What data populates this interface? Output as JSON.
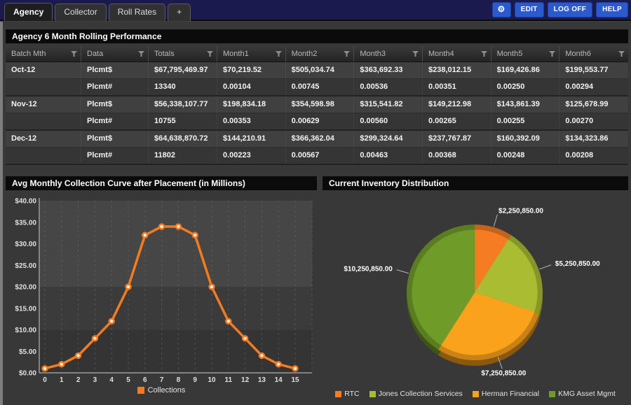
{
  "header": {
    "bar_color": "#1a1a4e",
    "button_color": "#2b5ace",
    "tabs": [
      {
        "label": "Agency",
        "active": true
      },
      {
        "label": "Collector",
        "active": false
      },
      {
        "label": "Roll Rates",
        "active": false
      },
      {
        "label": "+",
        "active": false
      }
    ],
    "buttons": [
      {
        "name": "settings",
        "label": "⚙"
      },
      {
        "name": "edit",
        "label": "EDIT"
      },
      {
        "name": "logoff",
        "label": "LOG OFF"
      },
      {
        "name": "help",
        "label": "HELP"
      }
    ]
  },
  "performance_table": {
    "title": "Agency 6 Month Rolling Performance",
    "columns": [
      "Batch Mth",
      "Data",
      "Totals",
      "Month1",
      "Month2",
      "Month3",
      "Month4",
      "Month5",
      "Month6"
    ],
    "rows": [
      [
        "Oct-12",
        "Plcmt$",
        "$67,795,469.97",
        "$70,219.52",
        "$505,034.74",
        "$363,692.33",
        "$238,012.15",
        "$169,426.86",
        "$199,553.77"
      ],
      [
        "",
        "Plcmt#",
        "13340",
        "0.00104",
        "0.00745",
        "0.00536",
        "0.00351",
        "0.00250",
        "0.00294"
      ],
      [
        "Nov-12",
        "Plcmt$",
        "$56,338,107.77",
        "$198,834.18",
        "$354,598.98",
        "$315,541.82",
        "$149,212.98",
        "$143,861.39",
        "$125,678.99"
      ],
      [
        "",
        "Plcmt#",
        "10755",
        "0.00353",
        "0.00629",
        "0.00560",
        "0.00265",
        "0.00255",
        "0.00270"
      ],
      [
        "Dec-12",
        "Plcmt$",
        "$64,638,870.72",
        "$144,210.91",
        "$366,362.04",
        "$299,324.64",
        "$237,767.87",
        "$160,392.09",
        "$134,323.86"
      ],
      [
        "",
        "Plcmt#",
        "11802",
        "0.00223",
        "0.00567",
        "0.00463",
        "0.00368",
        "0.00248",
        "0.00208"
      ]
    ]
  },
  "chart_data": [
    {
      "type": "line",
      "title": "Avg Monthly Collection Curve after Placement (in Millions)",
      "x": [
        0,
        1,
        2,
        3,
        4,
        5,
        6,
        7,
        8,
        9,
        10,
        11,
        12,
        13,
        14,
        15
      ],
      "series": [
        {
          "name": "Collections",
          "color": "#f57b20",
          "values": [
            1,
            2,
            4,
            8,
            12,
            20,
            32,
            34,
            34,
            32,
            20,
            12,
            8,
            4,
            2,
            1
          ]
        }
      ],
      "xlabel": "",
      "ylabel": "",
      "ylim": [
        0,
        40
      ],
      "ytick_step": 5,
      "ytick_labels": [
        "$0.00",
        "$5.00",
        "$10.00",
        "$15.00",
        "$20.00",
        "$25.00",
        "$30.00",
        "$35.00",
        "$40.00"
      ],
      "grid": "vertical-dashed",
      "legend_position": "bottom"
    },
    {
      "type": "pie",
      "title": "Current Inventory Distribution",
      "start_angle_deg": -90,
      "direction": "clockwise",
      "slices": [
        {
          "name": "RTC",
          "value": 2250850.0,
          "label": "$2,250,850.00",
          "color": "#f57c23"
        },
        {
          "name": "Jones Collection Services",
          "value": 5250850.0,
          "label": "$5,250,850.00",
          "color": "#a9bc32"
        },
        {
          "name": "Herman Financial",
          "value": 7250850.0,
          "label": "$7,250,850.00",
          "color": "#faa21b"
        },
        {
          "name": "KMG Asset Mgmt",
          "value": 10250850.0,
          "label": "$10,250,850.00",
          "color": "#6f9c28"
        }
      ],
      "legend_position": "bottom"
    }
  ]
}
